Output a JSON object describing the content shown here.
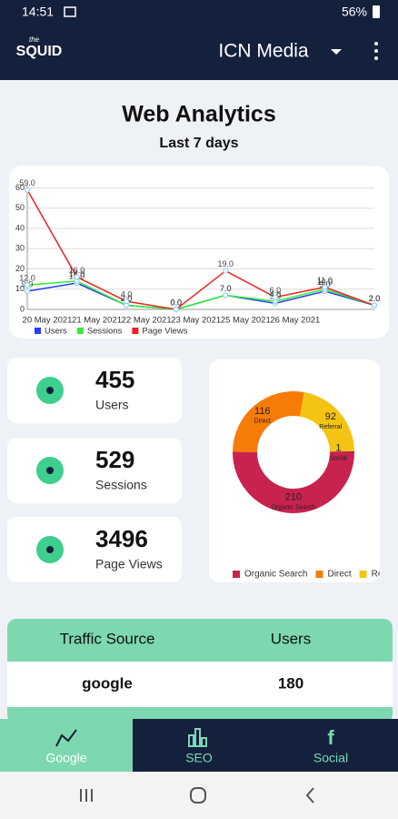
{
  "status_bar": {
    "time": "14:51",
    "battery": "56%"
  },
  "app_bar": {
    "logo_small": "the",
    "logo": "SQUID",
    "title": "ICN Media"
  },
  "header": {
    "title": "Web Analytics",
    "subtitle": "Last 7 days"
  },
  "chart_data": [
    {
      "type": "line",
      "categories": [
        "20 May 2021",
        "21 May 2021",
        "22 May 2021",
        "23 May 2021",
        "25 May 2021",
        "26 May 2021",
        null,
        null
      ],
      "series": [
        {
          "name": "Users",
          "color": "#1f3fff",
          "values": [
            9,
            13,
            2,
            0,
            7,
            3,
            9,
            2
          ],
          "value_labels": [
            "9.0",
            "13.0",
            "2.0",
            "0.0",
            "7.0",
            "3.0",
            "9.0",
            "2.0"
          ]
        },
        {
          "name": "Sessions",
          "color": "#33ee33",
          "values": [
            12,
            14,
            2,
            0,
            7,
            4,
            10,
            2
          ],
          "value_labels": [
            "12.0",
            "14.0",
            "2.0",
            "0.0",
            "7.0",
            "4.0",
            "10.0",
            "2.0"
          ]
        },
        {
          "name": "Page Views",
          "color": "#ee2222",
          "values": [
            59,
            16,
            4,
            0,
            19,
            6,
            11,
            2
          ],
          "value_labels": [
            "59.0",
            "16.0",
            "4.0",
            "0.0",
            "19.0",
            "6.0",
            "11.0",
            "2.0"
          ]
        }
      ],
      "ylim": [
        0,
        62
      ],
      "yticks": [
        0,
        10,
        20,
        30,
        40,
        50,
        60
      ],
      "grid": true,
      "legend": "bottom"
    },
    {
      "type": "donut",
      "categories": [
        "Organic Search",
        "Direct",
        "Referral",
        "Social"
      ],
      "values": [
        210,
        116,
        92,
        1
      ],
      "colors": [
        "#c8234f",
        "#f77b07",
        "#f5c313",
        "#a3163c"
      ],
      "legend": "bottom"
    }
  ],
  "stats": [
    {
      "value": 455,
      "label": "Users"
    },
    {
      "value": 529,
      "label": "Sessions"
    },
    {
      "value": 3496,
      "label": "Page Views"
    }
  ],
  "table": {
    "headers": [
      "Traffic Source",
      "Users"
    ],
    "rows": [
      [
        "google",
        180
      ]
    ]
  },
  "nav": {
    "tabs": [
      "Google",
      "SEO",
      "Social"
    ]
  }
}
